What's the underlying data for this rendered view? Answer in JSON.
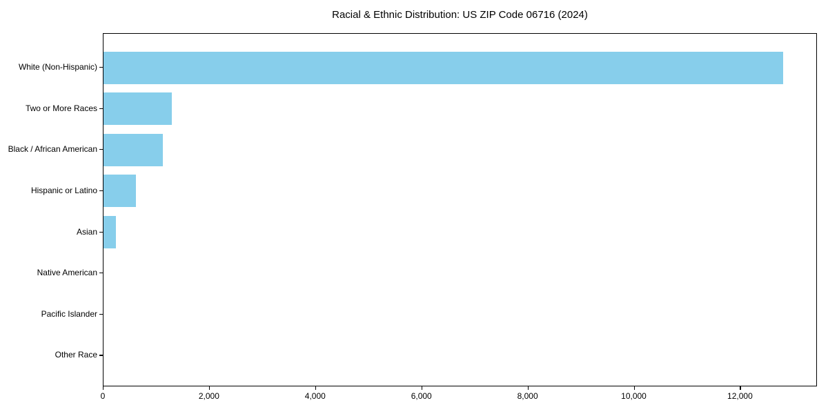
{
  "chart_data": {
    "type": "bar",
    "orientation": "horizontal",
    "title": "Racial & Ethnic Distribution: US ZIP Code 06716 (2024)",
    "categories": [
      "White (Non-Hispanic)",
      "Two or More Races",
      "Black / African American",
      "Hispanic or Latino",
      "Asian",
      "Native American",
      "Pacific Islander",
      "Other Race"
    ],
    "values": [
      12800,
      1290,
      1120,
      610,
      235,
      0,
      0,
      0
    ],
    "xlabel": "",
    "ylabel": "",
    "xlim": [
      0,
      13450
    ],
    "xticks": [
      0,
      2000,
      4000,
      6000,
      8000,
      10000,
      12000
    ],
    "xtick_labels": [
      "0",
      "2,000",
      "4,000",
      "6,000",
      "8,000",
      "10,000",
      "12,000"
    ],
    "bar_color": "#87CEEB",
    "axis_color": "#000000",
    "background_color": "#ffffff",
    "grid": false,
    "legend": null
  }
}
